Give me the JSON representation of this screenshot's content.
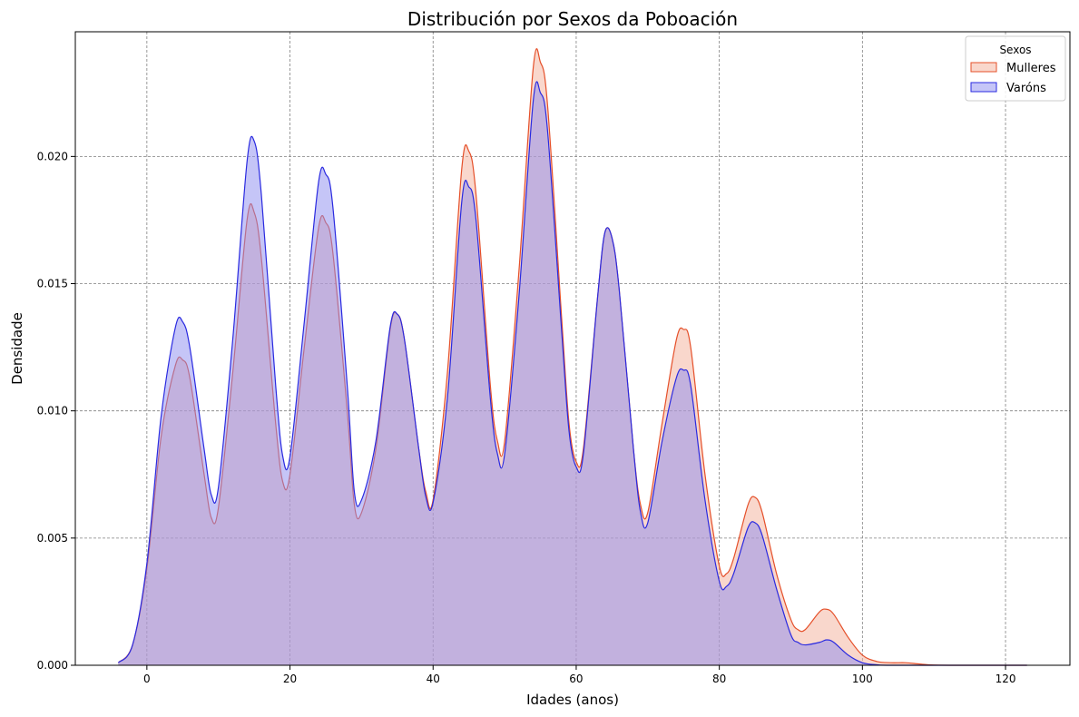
{
  "chart_data": {
    "type": "area",
    "title": "Distribución por Sexos da Poboación",
    "xlabel": "Idades (anos)",
    "ylabel": "Densidade",
    "xlim": [
      -10,
      129
    ],
    "ylim": [
      0,
      0.0249
    ],
    "x_ticks": [
      0,
      20,
      40,
      60,
      80,
      100,
      120
    ],
    "y_ticks": [
      0.0,
      0.005,
      0.01,
      0.015,
      0.02
    ],
    "x_tick_labels": [
      "0",
      "20",
      "40",
      "60",
      "80",
      "100",
      "120"
    ],
    "y_tick_labels": [
      "0.000",
      "0.005",
      "0.010",
      "0.015",
      "0.020"
    ],
    "grid": true,
    "legend": {
      "title": "Sexos",
      "position": "top-right",
      "entries": [
        "Mulleres",
        "Varóns"
      ]
    },
    "series": [
      {
        "name": "Mulleres",
        "line_color": "#e5502a",
        "fill_color": "#f4b09a",
        "points": [
          [
            -4,
            0.0001
          ],
          [
            -2,
            0.0008
          ],
          [
            0,
            0.0038
          ],
          [
            2,
            0.009
          ],
          [
            4,
            0.0118
          ],
          [
            5,
            0.012
          ],
          [
            6,
            0.0113
          ],
          [
            8,
            0.0075
          ],
          [
            9,
            0.0058
          ],
          [
            10,
            0.0062
          ],
          [
            12,
            0.0115
          ],
          [
            14,
            0.0175
          ],
          [
            15,
            0.0178
          ],
          [
            16,
            0.016
          ],
          [
            18,
            0.0095
          ],
          [
            19,
            0.0072
          ],
          [
            20,
            0.0075
          ],
          [
            22,
            0.0125
          ],
          [
            24,
            0.0172
          ],
          [
            25,
            0.0174
          ],
          [
            26,
            0.0162
          ],
          [
            28,
            0.01
          ],
          [
            29,
            0.0063
          ],
          [
            30,
            0.006
          ],
          [
            32,
            0.0085
          ],
          [
            34,
            0.0132
          ],
          [
            35,
            0.0138
          ],
          [
            36,
            0.0128
          ],
          [
            38,
            0.0085
          ],
          [
            39,
            0.0068
          ],
          [
            40,
            0.0065
          ],
          [
            42,
            0.0115
          ],
          [
            44,
            0.0195
          ],
          [
            45,
            0.0202
          ],
          [
            46,
            0.0185
          ],
          [
            48,
            0.011
          ],
          [
            49,
            0.0088
          ],
          [
            50,
            0.0088
          ],
          [
            52,
            0.0155
          ],
          [
            54,
            0.0235
          ],
          [
            55,
            0.0237
          ],
          [
            56,
            0.022
          ],
          [
            58,
            0.0135
          ],
          [
            59,
            0.0095
          ],
          [
            60,
            0.008
          ],
          [
            61,
            0.0085
          ],
          [
            63,
            0.0145
          ],
          [
            64,
            0.017
          ],
          [
            65,
            0.0168
          ],
          [
            66,
            0.0148
          ],
          [
            68,
            0.0085
          ],
          [
            69,
            0.0063
          ],
          [
            70,
            0.006
          ],
          [
            72,
            0.0095
          ],
          [
            74,
            0.0128
          ],
          [
            75,
            0.0132
          ],
          [
            76,
            0.0125
          ],
          [
            78,
            0.0075
          ],
          [
            80,
            0.0039
          ],
          [
            81,
            0.0036
          ],
          [
            82,
            0.0042
          ],
          [
            84,
            0.0063
          ],
          [
            85,
            0.0066
          ],
          [
            86,
            0.006
          ],
          [
            88,
            0.0036
          ],
          [
            90,
            0.0018
          ],
          [
            91,
            0.0014
          ],
          [
            92,
            0.0014
          ],
          [
            94,
            0.0021
          ],
          [
            95,
            0.0022
          ],
          [
            96,
            0.002
          ],
          [
            98,
            0.0011
          ],
          [
            100,
            0.0004
          ],
          [
            102,
            0.00015
          ],
          [
            104,
            0.0001
          ],
          [
            106,
            0.0001
          ],
          [
            108,
            5e-05
          ],
          [
            110,
            1e-05
          ],
          [
            115,
            0.0
          ],
          [
            123,
            0.0
          ]
        ]
      },
      {
        "name": "Varóns",
        "line_color": "#2a2ae0",
        "fill_color": "#8c8cf0",
        "points": [
          [
            -4,
            0.0001
          ],
          [
            -2,
            0.0008
          ],
          [
            0,
            0.004
          ],
          [
            2,
            0.0098
          ],
          [
            4,
            0.0133
          ],
          [
            5,
            0.0135
          ],
          [
            6,
            0.0125
          ],
          [
            8,
            0.0085
          ],
          [
            9,
            0.0067
          ],
          [
            10,
            0.007
          ],
          [
            12,
            0.0128
          ],
          [
            14,
            0.0198
          ],
          [
            15,
            0.0206
          ],
          [
            16,
            0.0185
          ],
          [
            18,
            0.011
          ],
          [
            19,
            0.0082
          ],
          [
            20,
            0.0082
          ],
          [
            22,
            0.0135
          ],
          [
            24,
            0.019
          ],
          [
            25,
            0.0193
          ],
          [
            26,
            0.018
          ],
          [
            28,
            0.011
          ],
          [
            29,
            0.0068
          ],
          [
            30,
            0.0065
          ],
          [
            32,
            0.0088
          ],
          [
            34,
            0.0133
          ],
          [
            35,
            0.0138
          ],
          [
            36,
            0.0128
          ],
          [
            38,
            0.0085
          ],
          [
            39,
            0.0066
          ],
          [
            40,
            0.0064
          ],
          [
            42,
            0.0105
          ],
          [
            44,
            0.0182
          ],
          [
            45,
            0.0188
          ],
          [
            46,
            0.0175
          ],
          [
            48,
            0.0105
          ],
          [
            49,
            0.0083
          ],
          [
            50,
            0.0083
          ],
          [
            52,
            0.0145
          ],
          [
            54,
            0.0222
          ],
          [
            55,
            0.0225
          ],
          [
            56,
            0.021
          ],
          [
            58,
            0.013
          ],
          [
            59,
            0.0092
          ],
          [
            60,
            0.0078
          ],
          [
            61,
            0.0083
          ],
          [
            63,
            0.0145
          ],
          [
            64,
            0.017
          ],
          [
            65,
            0.0168
          ],
          [
            66,
            0.0148
          ],
          [
            68,
            0.0085
          ],
          [
            69,
            0.006
          ],
          [
            70,
            0.0056
          ],
          [
            72,
            0.0088
          ],
          [
            74,
            0.0113
          ],
          [
            75,
            0.0116
          ],
          [
            76,
            0.011
          ],
          [
            78,
            0.0065
          ],
          [
            80,
            0.0033
          ],
          [
            81,
            0.0031
          ],
          [
            82,
            0.0036
          ],
          [
            84,
            0.0054
          ],
          [
            85,
            0.0056
          ],
          [
            86,
            0.0051
          ],
          [
            88,
            0.003
          ],
          [
            90,
            0.0012
          ],
          [
            91,
            0.0009
          ],
          [
            92,
            0.0008
          ],
          [
            94,
            0.0009
          ],
          [
            95,
            0.001
          ],
          [
            96,
            0.0009
          ],
          [
            98,
            0.0004
          ],
          [
            100,
            0.0001
          ],
          [
            102,
            2e-05
          ],
          [
            105,
            0.0
          ],
          [
            123,
            0.0
          ]
        ]
      }
    ]
  }
}
